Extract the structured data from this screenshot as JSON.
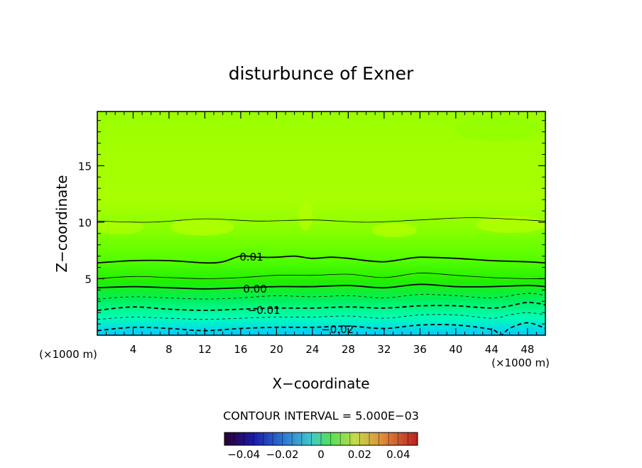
{
  "chart_data": {
    "type": "contour",
    "title": "disturbunce of Exner",
    "xlabel": "X−coordinate",
    "ylabel": "Z−coordinate",
    "x_unit_left": "(×1000 m)",
    "x_unit_right": "(×1000 m)",
    "xlim": [
      0,
      50
    ],
    "ylim": [
      0,
      19.8
    ],
    "x_ticks": [
      4,
      8,
      12,
      16,
      20,
      24,
      28,
      32,
      36,
      40,
      44,
      48
    ],
    "x_tick_labels": [
      "4",
      "8",
      "12",
      "16",
      "20",
      "24",
      "28",
      "32",
      "36",
      "40",
      "44",
      "48"
    ],
    "y_ticks": [
      5,
      10,
      15
    ],
    "y_tick_labels": [
      "5",
      "10",
      "15"
    ],
    "contour_interval_text": "CONTOUR INTERVAL = 5.000E−03",
    "contour_labels": [
      {
        "text": "0.01",
        "x": 17.2,
        "z": 6.9
      },
      {
        "text": "0.00",
        "x": 17.6,
        "z": 4.1
      },
      {
        "text": "−0.01",
        "x": 18.6,
        "z": 2.2
      },
      {
        "text": "−0.02",
        "x": 26.8,
        "z": 0.5
      }
    ],
    "contours": [
      {
        "level": 0.015,
        "style": "solid",
        "weight": "thin",
        "x": [
          0,
          6,
          12,
          18,
          24,
          30,
          36,
          42,
          50
        ],
        "z": [
          10.1,
          10.0,
          10.3,
          10.1,
          10.2,
          10.0,
          10.2,
          10.4,
          10.1
        ]
      },
      {
        "level": 0.01,
        "style": "solid",
        "weight": "bold",
        "x": [
          0,
          4,
          8,
          12,
          14,
          16,
          18,
          20,
          22,
          24,
          26,
          28,
          30,
          32,
          34,
          36,
          40,
          44,
          48,
          50
        ],
        "z": [
          6.4,
          6.6,
          6.6,
          6.4,
          6.5,
          7.0,
          6.9,
          6.9,
          7.0,
          6.8,
          6.9,
          6.8,
          6.6,
          6.5,
          6.7,
          6.9,
          6.8,
          6.6,
          6.5,
          6.4
        ]
      },
      {
        "level": 0.005,
        "style": "solid",
        "weight": "thin",
        "x": [
          0,
          4,
          8,
          12,
          16,
          20,
          24,
          28,
          32,
          36,
          40,
          44,
          48,
          50
        ],
        "z": [
          5.0,
          5.2,
          5.1,
          5.0,
          5.1,
          5.3,
          5.3,
          5.4,
          5.1,
          5.5,
          5.3,
          5.1,
          5.0,
          5.0
        ]
      },
      {
        "level": 0.0,
        "style": "solid",
        "weight": "bold",
        "x": [
          0,
          4,
          8,
          12,
          16,
          20,
          24,
          28,
          32,
          36,
          40,
          44,
          48,
          50
        ],
        "z": [
          4.2,
          4.3,
          4.2,
          4.1,
          4.2,
          4.3,
          4.3,
          4.4,
          4.2,
          4.5,
          4.3,
          4.3,
          4.4,
          4.3
        ]
      },
      {
        "level": -0.005,
        "style": "dashed",
        "weight": "thin",
        "x": [
          0,
          4,
          8,
          12,
          16,
          20,
          24,
          28,
          32,
          36,
          40,
          44,
          48,
          50
        ],
        "z": [
          3.2,
          3.4,
          3.3,
          3.2,
          3.3,
          3.5,
          3.4,
          3.5,
          3.3,
          3.6,
          3.5,
          3.3,
          3.7,
          3.5
        ]
      },
      {
        "level": -0.01,
        "style": "dashed",
        "weight": "bold",
        "x": [
          0,
          4,
          8,
          12,
          16,
          20,
          24,
          28,
          32,
          36,
          40,
          44,
          46,
          48,
          50
        ],
        "z": [
          2.2,
          2.5,
          2.3,
          2.2,
          2.3,
          2.4,
          2.4,
          2.5,
          2.4,
          2.6,
          2.6,
          2.4,
          2.6,
          2.9,
          2.7
        ]
      },
      {
        "level": -0.015,
        "style": "dashed",
        "weight": "thin",
        "x": [
          0,
          4,
          8,
          12,
          16,
          20,
          24,
          28,
          32,
          36,
          40,
          44,
          46,
          48,
          50
        ],
        "z": [
          1.4,
          1.6,
          1.5,
          1.4,
          1.5,
          1.6,
          1.6,
          1.7,
          1.5,
          1.8,
          1.8,
          1.5,
          1.8,
          2.0,
          1.8
        ]
      },
      {
        "level": -0.02,
        "style": "dashed",
        "weight": "bold",
        "x": [
          0,
          4,
          8,
          12,
          16,
          20,
          24,
          28,
          32,
          36,
          40,
          44,
          45,
          46,
          48,
          50
        ],
        "z": [
          0.4,
          0.7,
          0.6,
          0.4,
          0.6,
          0.7,
          0.7,
          0.8,
          0.6,
          0.9,
          0.9,
          0.5,
          0.0,
          0.6,
          1.1,
          0.6
        ]
      }
    ],
    "colorbar": {
      "min": -0.05,
      "max": 0.05,
      "ticks": [
        -0.04,
        -0.02,
        0,
        0.02,
        0.04
      ],
      "tick_labels": [
        "−0.04",
        "−0.02",
        "0",
        "0.02",
        "0.04"
      ]
    },
    "colors": {
      "field_top": "#99ff00",
      "field_mid": "#b2ff00",
      "field_band": "#66ff00",
      "field_green": "#22ee00",
      "field_low": "#00ff88",
      "field_bottom": "#00ccff",
      "axis": "#000000"
    }
  }
}
